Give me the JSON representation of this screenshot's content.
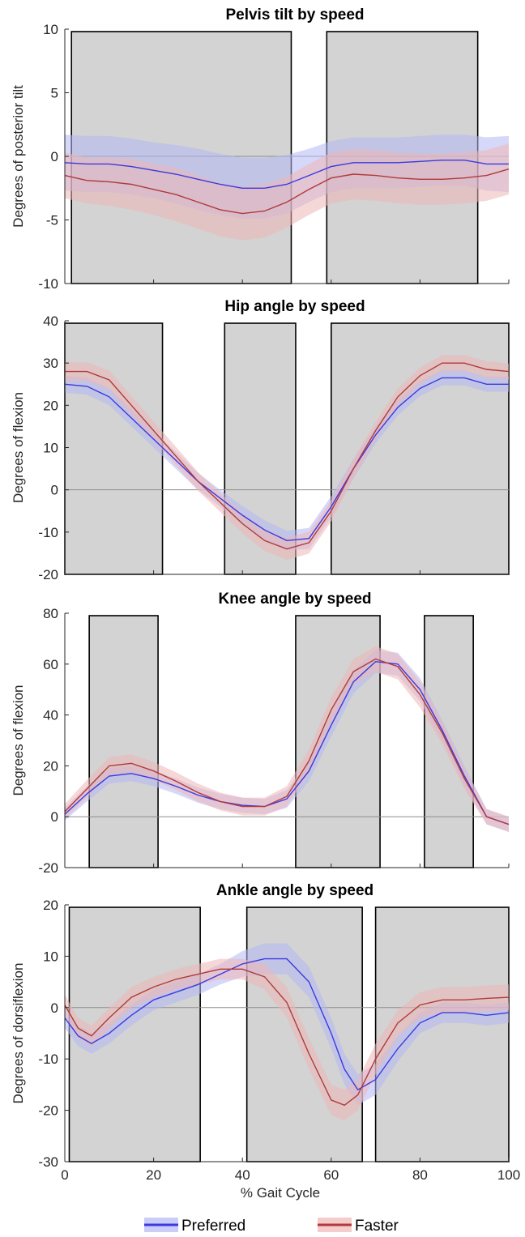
{
  "colors": {
    "preferred_line": "#3a3ae0",
    "preferred_band": "#b4b8f4",
    "faster_line": "#b03a3a",
    "faster_band": "#efb6b6",
    "shade_fill": "#d3d3d3",
    "zero_line": "#8c8c8c"
  },
  "legend": [
    {
      "name": "Preferred",
      "color": "#3a3ae0"
    },
    {
      "name": "Faster",
      "color": "#b03a3a"
    }
  ],
  "chart_data": [
    {
      "type": "line",
      "title": "Pelvis tilt by speed",
      "ylabel": "Degrees of posterior tilt",
      "xlim": [
        0,
        100
      ],
      "ylim": [
        -10,
        10
      ],
      "yticks": [
        -10,
        -5,
        0,
        5,
        10
      ],
      "shaded_regions": [
        [
          1.5,
          51
        ],
        [
          59,
          93
        ]
      ],
      "series": [
        {
          "name": "Preferred",
          "x": [
            0,
            5,
            10,
            15,
            20,
            25,
            30,
            35,
            40,
            45,
            50,
            55,
            60,
            65,
            70,
            75,
            80,
            85,
            90,
            95,
            100
          ],
          "mean": [
            -0.5,
            -0.6,
            -0.6,
            -0.8,
            -1.1,
            -1.4,
            -1.8,
            -2.2,
            -2.5,
            -2.5,
            -2.2,
            -1.5,
            -0.8,
            -0.5,
            -0.5,
            -0.5,
            -0.4,
            -0.3,
            -0.3,
            -0.6,
            -0.6
          ],
          "sd": [
            2.2,
            2.2,
            2.2,
            2.2,
            2.2,
            2.3,
            2.4,
            2.4,
            2.4,
            2.4,
            2.3,
            2.1,
            2.0,
            2.0,
            2.0,
            2.0,
            2.0,
            2.0,
            2.0,
            2.1,
            2.2
          ]
        },
        {
          "name": "Faster",
          "x": [
            0,
            5,
            10,
            15,
            20,
            25,
            30,
            35,
            40,
            45,
            50,
            55,
            60,
            65,
            70,
            75,
            80,
            85,
            90,
            95,
            100
          ],
          "mean": [
            -1.5,
            -1.9,
            -2.0,
            -2.2,
            -2.6,
            -3.0,
            -3.6,
            -4.2,
            -4.5,
            -4.3,
            -3.6,
            -2.6,
            -1.7,
            -1.4,
            -1.5,
            -1.7,
            -1.8,
            -1.8,
            -1.7,
            -1.5,
            -1.0
          ],
          "sd": [
            1.8,
            1.8,
            1.9,
            2.0,
            2.0,
            2.1,
            2.1,
            2.1,
            2.1,
            2.1,
            2.0,
            2.0,
            2.0,
            2.0,
            2.0,
            2.0,
            2.0,
            2.0,
            2.0,
            2.0,
            2.0
          ]
        }
      ]
    },
    {
      "type": "line",
      "title": "Hip angle by speed",
      "ylabel": "Degrees of flexion",
      "xlim": [
        0,
        100
      ],
      "ylim": [
        -20,
        40
      ],
      "yticks": [
        -20,
        -10,
        0,
        10,
        20,
        30,
        40
      ],
      "shaded_regions": [
        [
          0,
          22
        ],
        [
          36,
          52
        ],
        [
          60,
          100
        ]
      ],
      "series": [
        {
          "name": "Preferred",
          "x": [
            0,
            5,
            10,
            15,
            20,
            25,
            30,
            35,
            40,
            45,
            50,
            55,
            60,
            65,
            70,
            75,
            80,
            85,
            90,
            95,
            100
          ],
          "mean": [
            25,
            24.5,
            22,
            17,
            12,
            7,
            2,
            -2,
            -6,
            -9.5,
            -12,
            -11.5,
            -4,
            5,
            13,
            19.5,
            24,
            26.5,
            26.5,
            25,
            25
          ],
          "sd": [
            2.0,
            2.0,
            2.0,
            2.0,
            2.0,
            2.0,
            2.0,
            2.0,
            2.2,
            2.3,
            2.3,
            2.5,
            2.5,
            2.3,
            2.0,
            1.9,
            1.8,
            1.8,
            1.8,
            1.8,
            1.8
          ]
        },
        {
          "name": "Faster",
          "x": [
            0,
            5,
            10,
            15,
            20,
            25,
            30,
            35,
            40,
            45,
            50,
            55,
            60,
            65,
            70,
            75,
            80,
            85,
            90,
            95,
            100
          ],
          "mean": [
            28,
            28,
            26,
            20,
            14,
            8,
            2,
            -3,
            -8,
            -12,
            -14,
            -12.5,
            -5,
            5,
            14,
            22,
            27,
            30,
            30,
            28.5,
            28
          ],
          "sd": [
            2.2,
            2.2,
            2.2,
            2.2,
            2.2,
            2.2,
            2.2,
            2.2,
            2.3,
            2.5,
            2.6,
            2.6,
            2.5,
            2.3,
            2.1,
            2.0,
            1.9,
            1.9,
            1.9,
            1.9,
            1.9
          ]
        }
      ]
    },
    {
      "type": "line",
      "title": "Knee angle by speed",
      "ylabel": "Degrees of flexion",
      "xlim": [
        0,
        100
      ],
      "ylim": [
        -20,
        80
      ],
      "yticks": [
        -20,
        0,
        20,
        40,
        60,
        80
      ],
      "shaded_regions": [
        [
          5.5,
          21
        ],
        [
          52,
          71
        ],
        [
          81,
          92
        ]
      ],
      "series": [
        {
          "name": "Preferred",
          "x": [
            0,
            5,
            10,
            15,
            20,
            25,
            30,
            35,
            40,
            45,
            50,
            55,
            60,
            65,
            70,
            75,
            80,
            85,
            90,
            95,
            100
          ],
          "mean": [
            1,
            9,
            16,
            17,
            15,
            12,
            8.5,
            6,
            4.5,
            4,
            7,
            18,
            36,
            53,
            61,
            60,
            50,
            34,
            16,
            0,
            -3
          ],
          "sd": [
            2.5,
            3,
            3,
            3,
            3,
            3,
            3,
            3,
            3,
            3,
            3.5,
            4,
            4.5,
            4.5,
            4.5,
            4.5,
            4.5,
            4,
            4,
            3,
            3
          ]
        },
        {
          "name": "Faster",
          "x": [
            0,
            5,
            10,
            15,
            20,
            25,
            30,
            35,
            40,
            45,
            50,
            55,
            60,
            65,
            70,
            75,
            80,
            85,
            90,
            95,
            100
          ],
          "mean": [
            2,
            11,
            20,
            21,
            18,
            14,
            9.5,
            6,
            4,
            4,
            8,
            22,
            42,
            57,
            62,
            59,
            48,
            33,
            15,
            0,
            -3
          ],
          "sd": [
            3,
            3.5,
            3.5,
            3.5,
            3.5,
            3.5,
            3.5,
            3.5,
            3.5,
            3.5,
            4,
            4.5,
            5,
            5,
            5,
            5,
            5,
            4.5,
            4,
            3,
            3
          ]
        }
      ]
    },
    {
      "type": "line",
      "title": "Ankle angle by speed",
      "ylabel": "Degrees of dorsiflexion",
      "xlabel": "% Gait Cycle",
      "xlim": [
        0,
        100
      ],
      "ylim": [
        -30,
        20
      ],
      "yticks": [
        -30,
        -20,
        -10,
        0,
        10,
        20
      ],
      "xticks": [
        0,
        20,
        40,
        60,
        80,
        100
      ],
      "shaded_regions": [
        [
          1,
          30.5
        ],
        [
          41,
          67
        ],
        [
          70,
          100
        ]
      ],
      "series": [
        {
          "name": "Preferred",
          "x": [
            0,
            3,
            6,
            10,
            15,
            20,
            25,
            30,
            35,
            40,
            45,
            50,
            55,
            60,
            63,
            66,
            70,
            75,
            80,
            85,
            90,
            95,
            100
          ],
          "mean": [
            -2,
            -5.5,
            -7,
            -5,
            -1.5,
            1.5,
            3,
            4.5,
            6.5,
            8.5,
            9.5,
            9.5,
            5,
            -5,
            -12,
            -16,
            -14,
            -8,
            -3,
            -1,
            -1,
            -1.5,
            -1
          ],
          "sd": [
            2,
            2,
            2,
            2,
            2,
            2,
            2,
            2,
            2,
            2.5,
            3,
            3,
            3,
            3,
            3,
            3,
            3,
            2.5,
            2,
            2,
            2,
            2,
            2
          ]
        },
        {
          "name": "Faster",
          "x": [
            0,
            3,
            6,
            10,
            15,
            20,
            25,
            30,
            35,
            40,
            45,
            50,
            55,
            60,
            63,
            66,
            70,
            75,
            80,
            85,
            90,
            95,
            100
          ],
          "mean": [
            0.5,
            -4,
            -5.5,
            -2,
            2,
            4,
            5.5,
            6.5,
            7.5,
            7.5,
            6,
            1,
            -9,
            -18,
            -19,
            -17,
            -10,
            -3,
            0.5,
            1.5,
            1.5,
            1.8,
            2
          ],
          "sd": [
            2,
            2,
            2,
            2,
            2,
            2,
            2,
            2,
            2,
            2,
            2.5,
            3,
            3,
            3,
            3,
            3,
            3,
            2.5,
            2.5,
            2.5,
            2.5,
            2.5,
            2.5
          ]
        }
      ]
    }
  ]
}
